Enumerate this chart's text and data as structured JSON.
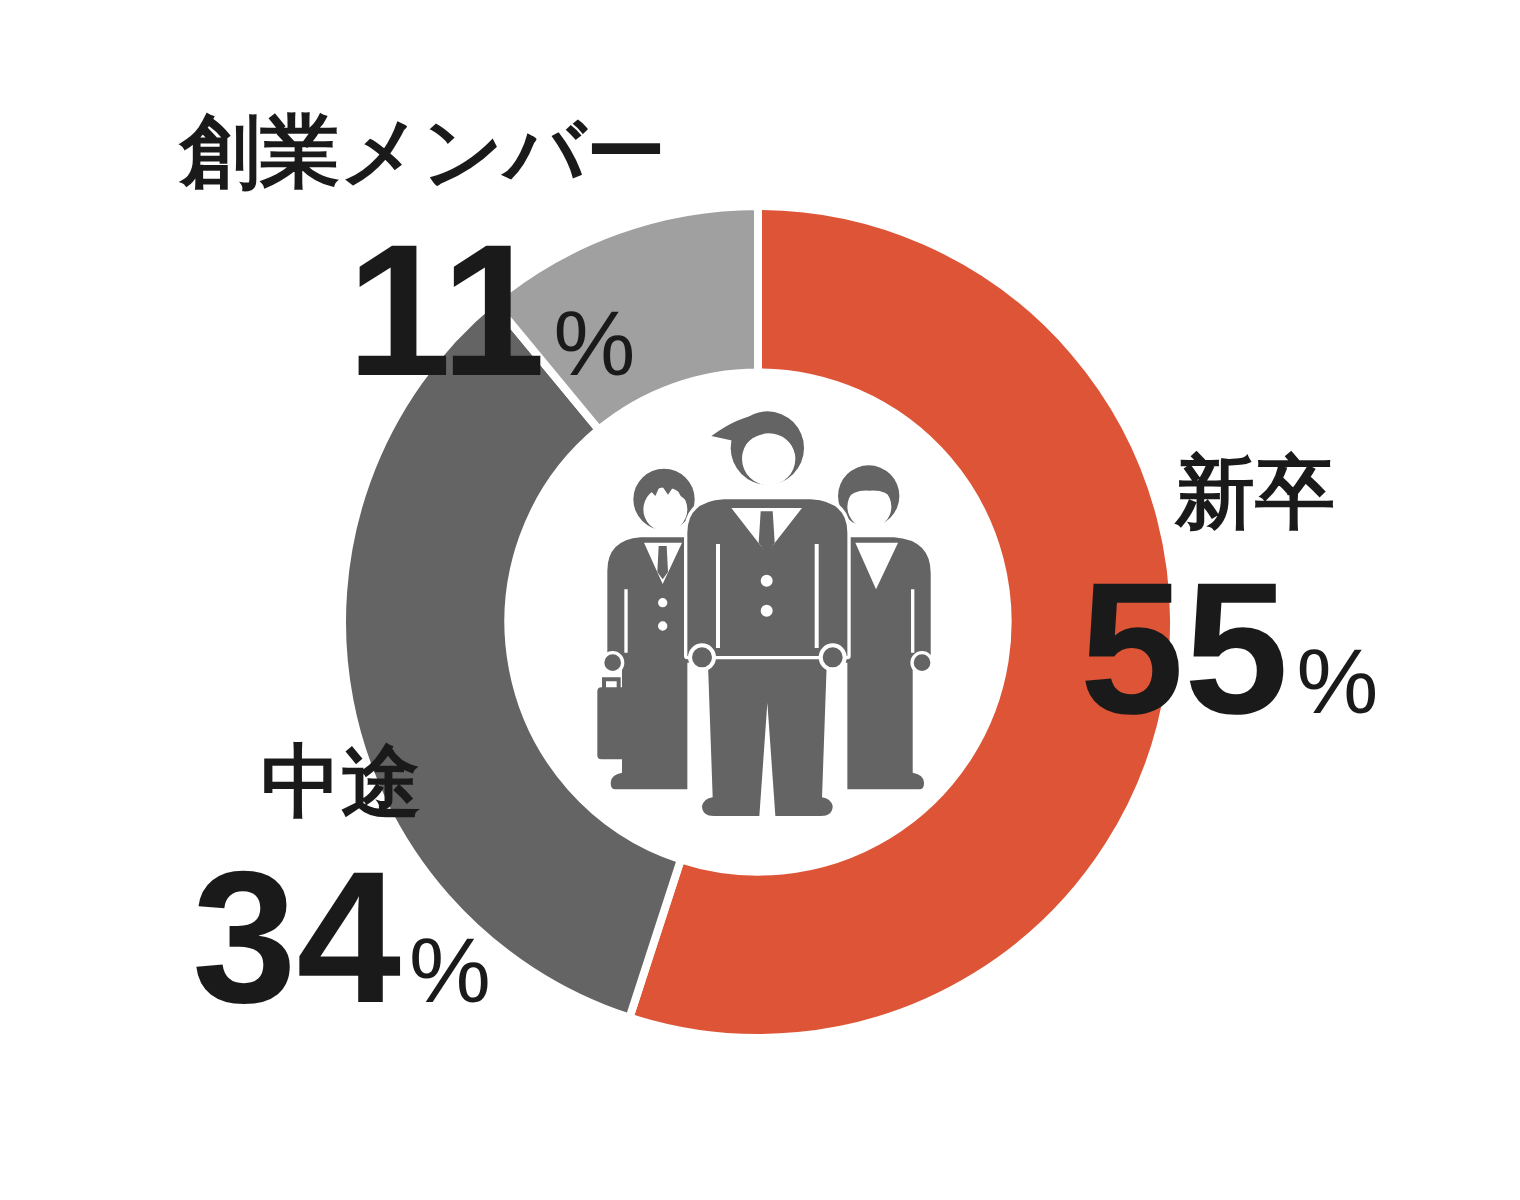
{
  "chart_data": {
    "type": "donut",
    "categories": [
      "新卒",
      "中途",
      "創業メンバー"
    ],
    "values": [
      55,
      34,
      11
    ],
    "colors": [
      "#dd5536",
      "#646464",
      "#a0a0a0"
    ],
    "value_labels": [
      "55%",
      "34%",
      "11%"
    ]
  }
}
